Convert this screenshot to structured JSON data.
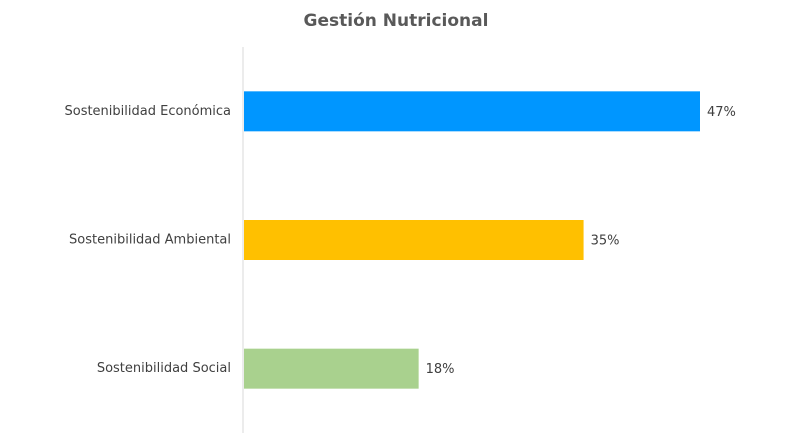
{
  "chart_data": {
    "type": "bar",
    "orientation": "horizontal",
    "title": "Gestión Nutricional",
    "categories": [
      "Sostenibilidad Económica",
      "Sostenibilidad Ambiental",
      "Sostenibilidad Social"
    ],
    "values": [
      47,
      35,
      18
    ],
    "value_labels": [
      "47%",
      "35%",
      "18%"
    ],
    "colors": [
      "#0096ff",
      "#ffc000",
      "#a9d18e"
    ]
  }
}
